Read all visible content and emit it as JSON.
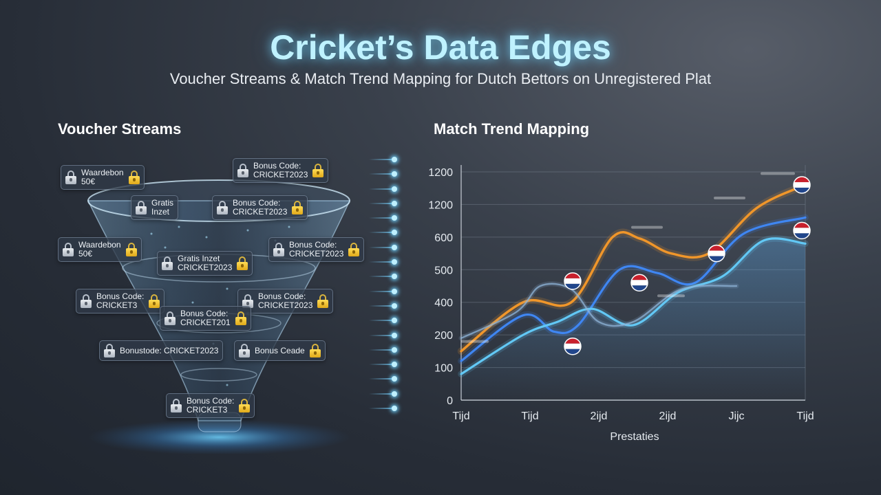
{
  "header": {
    "title": "Cricket’s Data Edges",
    "subtitle": "Voucher Streams & Match Trend Mapping for Dutch Bettors on Unregistered Plat"
  },
  "voucher_streams": {
    "title": "Voucher Streams",
    "icons": {
      "lock_silver": "padlock-icon",
      "lock_gold": "gold-padlock-icon",
      "glow_dot": "glowing-dot-icon"
    },
    "chips": [
      {
        "text": "Waardebon\n50€"
      },
      {
        "text": "Bonus Code:\nCRICKET2023"
      },
      {
        "text": "Gratis\nInzet"
      },
      {
        "text": "Bonus Code:\nCRICKET2023"
      },
      {
        "text": "Waardebon\n50€"
      },
      {
        "text": "Bonus Code:\nCRICKET2023"
      },
      {
        "text": "Gratis Inzet\nCRICKET2023"
      },
      {
        "text": "Bonus Code:\nCRICKET3"
      },
      {
        "text": "Bonus Code:\nCRICKET2023"
      },
      {
        "text": "Bonus Code:\nCRICKET201"
      },
      {
        "text": "Bonustode: CRICKET2023"
      },
      {
        "text": "Bonus Ceade"
      },
      {
        "text": "Bonus Code:\nCRICKET3"
      }
    ]
  },
  "colors": {
    "title_glow": "#bff2ff",
    "series_orange": "#f0962a",
    "series_blue": "#3f86f2",
    "series_lightblue": "#62c8f5",
    "series_pale": "#8fb4d8"
  },
  "chart_data": {
    "type": "line",
    "title": "Match Trend Mapping",
    "xlabel": "Prestaties",
    "ylabel": "",
    "x_ticks": [
      "Tijd",
      "Tijd",
      "2ijd",
      "2ijd",
      "Jijc",
      "Tijd"
    ],
    "y_ticks": [
      "0",
      "100",
      "200",
      "400",
      "500",
      "600",
      "1200",
      "1200"
    ],
    "grid": true,
    "ylim": [
      0,
      7
    ],
    "xlim": [
      0,
      5
    ],
    "series": [
      {
        "points": [
          [
            0,
            1.5
          ],
          [
            0.9,
            3.0
          ],
          [
            1.6,
            3.0
          ],
          [
            2.2,
            5.0
          ],
          [
            2.6,
            4.95
          ],
          [
            3.05,
            4.5
          ],
          [
            3.6,
            4.5
          ],
          [
            4.3,
            5.9
          ],
          [
            5,
            6.6
          ]
        ]
      },
      {
        "points": [
          [
            0,
            1.2
          ],
          [
            0.9,
            2.6
          ],
          [
            1.35,
            2.1
          ],
          [
            1.7,
            2.3
          ],
          [
            2.3,
            4.0
          ],
          [
            2.85,
            3.9
          ],
          [
            3.4,
            3.6
          ],
          [
            4.1,
            5.1
          ],
          [
            5,
            5.6
          ]
        ]
      },
      {
        "points": [
          [
            0,
            0.8
          ],
          [
            0.9,
            2.0
          ],
          [
            1.4,
            2.4
          ],
          [
            1.9,
            2.8
          ],
          [
            2.5,
            2.3
          ],
          [
            3.15,
            3.3
          ],
          [
            3.8,
            3.8
          ],
          [
            4.4,
            4.9
          ],
          [
            5,
            4.8
          ]
        ]
      },
      {
        "points": [
          [
            0,
            1.9
          ],
          [
            0.8,
            2.7
          ],
          [
            1.15,
            3.5
          ],
          [
            1.6,
            3.4
          ],
          [
            2.0,
            2.4
          ],
          [
            2.5,
            2.4
          ],
          [
            3.2,
            3.4
          ],
          [
            4.0,
            3.5
          ]
        ]
      }
    ],
    "markers": [
      {
        "icon": "netherlands-flag-icon",
        "x": 1.62,
        "y": 3.65
      },
      {
        "icon": "netherlands-flag-icon",
        "x": 1.62,
        "y": 1.65
      },
      {
        "icon": "netherlands-flag-icon",
        "x": 2.59,
        "y": 3.6
      },
      {
        "icon": "netherlands-flag-icon",
        "x": 3.71,
        "y": 4.5
      },
      {
        "icon": "netherlands-flag-icon",
        "x": 4.95,
        "y": 6.6
      },
      {
        "icon": "netherlands-flag-icon",
        "x": 4.95,
        "y": 5.2
      }
    ]
  }
}
